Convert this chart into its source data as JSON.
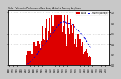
{
  "title": "Solar PV/Inverter Performance East Array Actual & Running Avg Power",
  "bg_color": "#c8c8c8",
  "plot_bg": "#ffffff",
  "bar_color": "#dd0000",
  "avg_color": "#0000dd",
  "grid_color": "#c0c0c0",
  "ylim": [
    0,
    1.05
  ],
  "num_bars": 96,
  "legend_actual": "Actual",
  "legend_avg": "Running Average",
  "yticks": [
    0.0,
    0.2,
    0.4,
    0.6,
    0.8,
    1.0
  ],
  "ytick_labels": [
    "0.0",
    "0.2",
    "0.4",
    "0.6",
    "0.8",
    "1.0"
  ]
}
